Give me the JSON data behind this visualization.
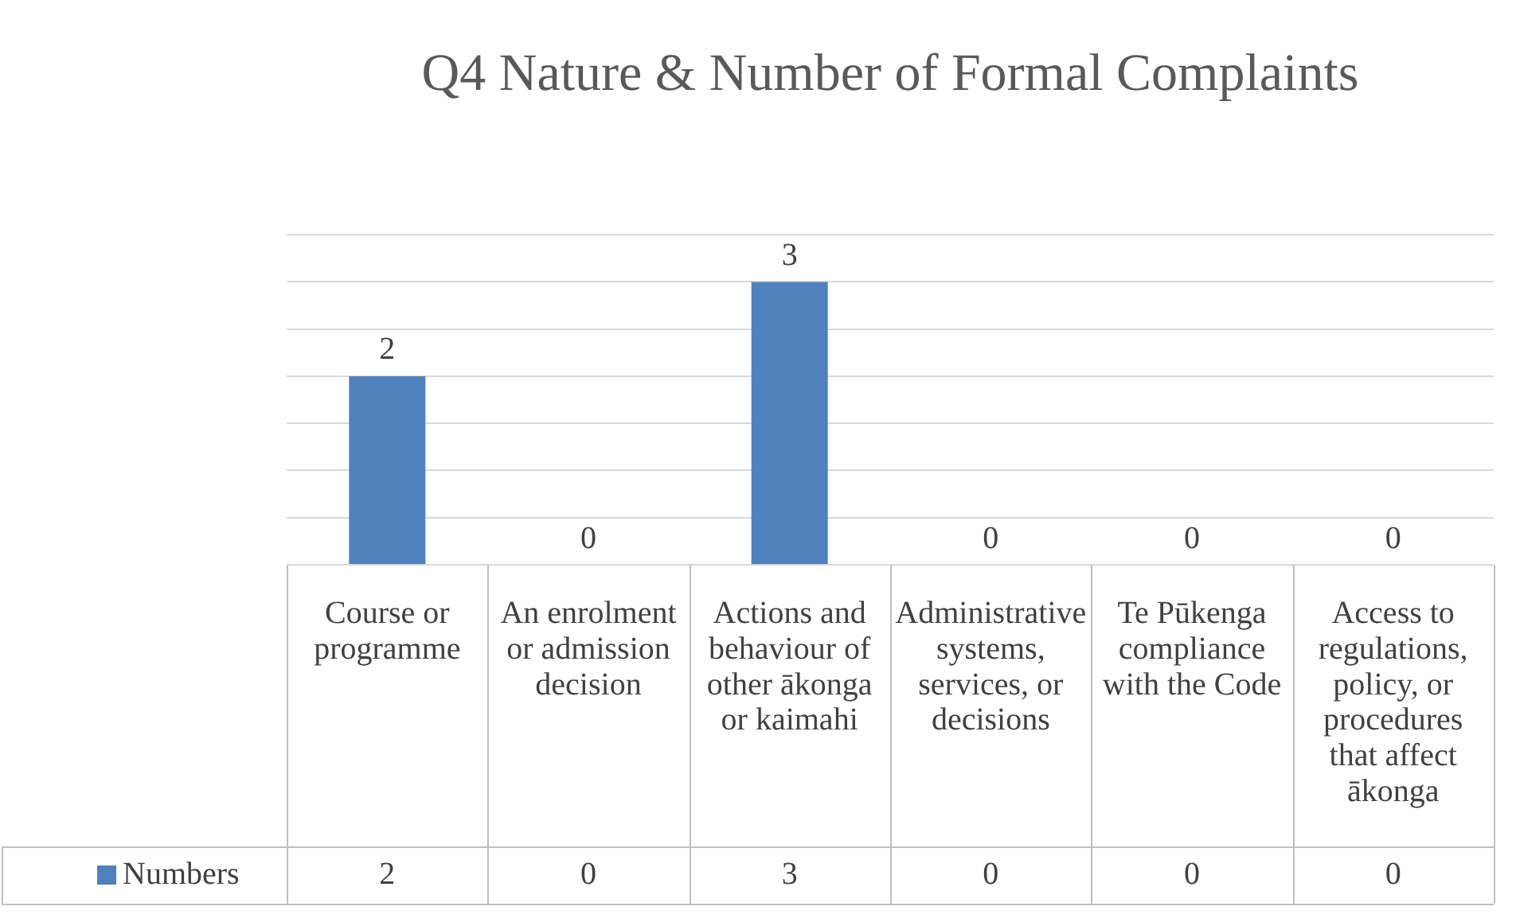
{
  "chart_data": {
    "type": "bar",
    "title": "Q4 Nature & Number of Formal Complaints",
    "categories": [
      "Course or programme",
      "An enrolment or admission decision",
      "Actions and behaviour of other ākonga or kaimahi",
      "Administrative systems, services, or decisions",
      "Te Pūkenga compliance with the Code",
      "Access to regulations, policy, or procedures that affect ākonga"
    ],
    "series": [
      {
        "name": "Numbers",
        "color": "#4f81bd",
        "values": [
          2,
          0,
          3,
          0,
          0,
          0
        ],
        "value_labels": [
          "2",
          "0",
          "3",
          "0",
          "0",
          "0"
        ]
      }
    ],
    "ylim": [
      0,
      3.5
    ],
    "yticks": [
      {
        "value": 0,
        "label": null
      },
      {
        "value": 0.5,
        "label": null
      },
      {
        "value": 1,
        "label": null
      },
      {
        "value": 1.5,
        "label": null
      },
      {
        "value": 2,
        "label": null
      },
      {
        "value": 2.5,
        "label": null
      },
      {
        "value": 3,
        "label": null
      },
      {
        "value": 3.5,
        "label": null
      }
    ],
    "annotations": [
      "2",
      "0",
      "3",
      "0",
      "0",
      "0"
    ],
    "tick_labels": "x",
    "grid": "y",
    "legend": "bottom",
    "data_labels": true
  }
}
